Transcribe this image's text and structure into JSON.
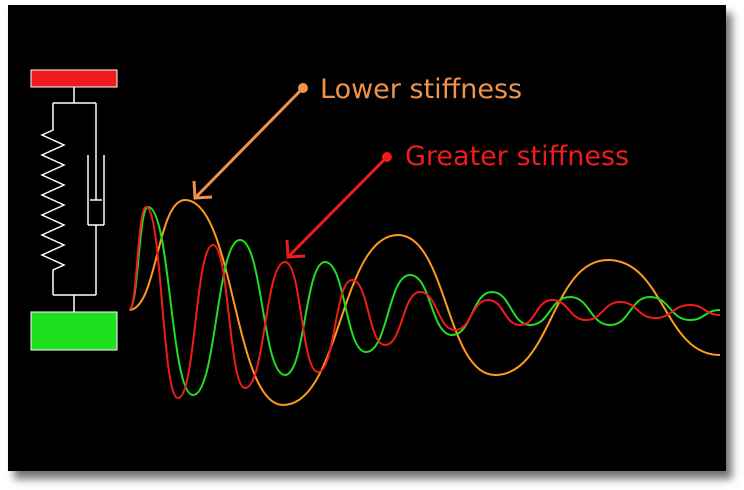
{
  "annotations": {
    "lower": {
      "text": "Lower stiffness",
      "color": "#f0924a"
    },
    "greater": {
      "text": "Greater stiffness",
      "color": "#ee1c1c"
    }
  },
  "colors": {
    "background": "#000000",
    "top_mass": "#ee1c1c",
    "bottom_mass": "#1fe01f",
    "spring_damper": "#ffffff",
    "curve_orange": "#ff9a1f",
    "curve_green": "#22dd22",
    "curve_red": "#ee1c1c",
    "arrow_orange": "#f0924a",
    "arrow_red": "#ee1c1c"
  },
  "icons": {
    "system": "mass-spring-damper-icon"
  }
}
